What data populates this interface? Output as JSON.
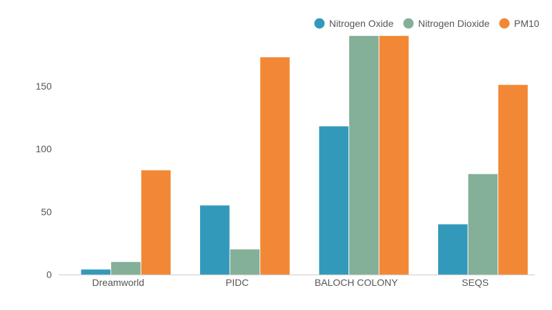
{
  "chart_data": {
    "type": "bar",
    "title": "",
    "xlabel": "",
    "ylabel": "",
    "categories": [
      "Dreamworld",
      "PIDC",
      "BALOCH COLONY",
      "SEQS"
    ],
    "series": [
      {
        "name": "Nitrogen Oxide",
        "color": "#3399bb",
        "values": [
          4,
          55,
          118,
          40
        ]
      },
      {
        "name": "Nitrogen Dioxide",
        "color": "#84af98",
        "values": [
          10,
          20,
          190,
          80
        ]
      },
      {
        "name": "PM10",
        "color": "#f28835",
        "values": [
          83,
          173,
          190,
          151
        ]
      }
    ],
    "y_ticks": [
      0,
      50,
      100,
      150
    ],
    "ylim": [
      0,
      190
    ],
    "grid": false,
    "legend": {
      "position": "top-right"
    }
  }
}
